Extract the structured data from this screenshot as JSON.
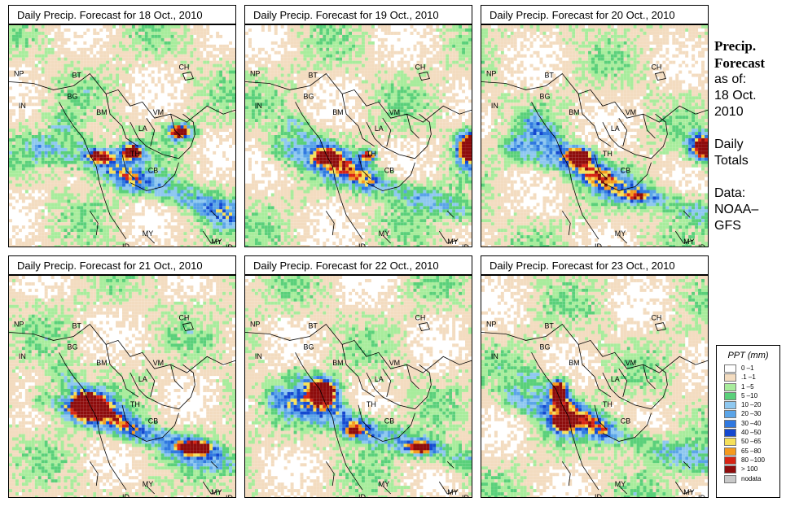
{
  "panels": [
    {
      "title": "Daily Precip. Forecast for  18 Oct., 2010",
      "seed": 11,
      "storm": "land"
    },
    {
      "title": "Daily Precip. Forecast for  19 Oct., 2010",
      "seed": 23,
      "storm": "east"
    },
    {
      "title": "Daily Precip. Forecast for  20 Oct., 2010",
      "seed": 37,
      "storm": "east2"
    },
    {
      "title": "Daily Precip. Forecast for  21 Oct., 2010",
      "seed": 41,
      "storm": "bay"
    },
    {
      "title": "Daily Precip. Forecast for  22 Oct., 2010",
      "seed": 53,
      "storm": "bay2"
    },
    {
      "title": "Daily Precip. Forecast for  23 Oct., 2010",
      "seed": 67,
      "storm": "north"
    }
  ],
  "map_labels": {
    "ch": "CH",
    "np": "NP",
    "bt": "BT",
    "in": "IN",
    "bg": "BG",
    "bm": "BM",
    "vm": "VM",
    "la": "LA",
    "th": "TH",
    "cb": "CB",
    "my": "MY",
    "id": "ID",
    "my2": "MY",
    "id2": "ID"
  },
  "side": {
    "heading1": "Precip.",
    "heading2": "Forecast",
    "asof": "as of:",
    "date1": "18 Oct.",
    "date2": "2010",
    "daily1": "Daily",
    "daily2": "Totals",
    "data1": "Data:",
    "data2": "NOAA–",
    "data3": "GFS"
  },
  "legend": {
    "title": "PPT (mm)",
    "items": [
      {
        "label": "0 –1",
        "color": "#ffffff"
      },
      {
        "label": ".1 –1",
        "color": "#f3dcc0"
      },
      {
        "label": "1 –5",
        "color": "#a8ec9c"
      },
      {
        "label": "5 –10",
        "color": "#5ad07a"
      },
      {
        "label": "10 –20",
        "color": "#8ec8f0"
      },
      {
        "label": "20 –30",
        "color": "#5aa4e8"
      },
      {
        "label": "30 –40",
        "color": "#2f78e0"
      },
      {
        "label": "40 –50",
        "color": "#1448d0"
      },
      {
        "label": "50 –65",
        "color": "#f5e05a"
      },
      {
        "label": "65 –80",
        "color": "#f59a1e"
      },
      {
        "label": "80 –100",
        "color": "#d82414"
      },
      {
        "label": "> 100",
        "color": "#8e0c0c"
      },
      {
        "label": "nodata",
        "color": "#c8c8c8"
      }
    ]
  }
}
